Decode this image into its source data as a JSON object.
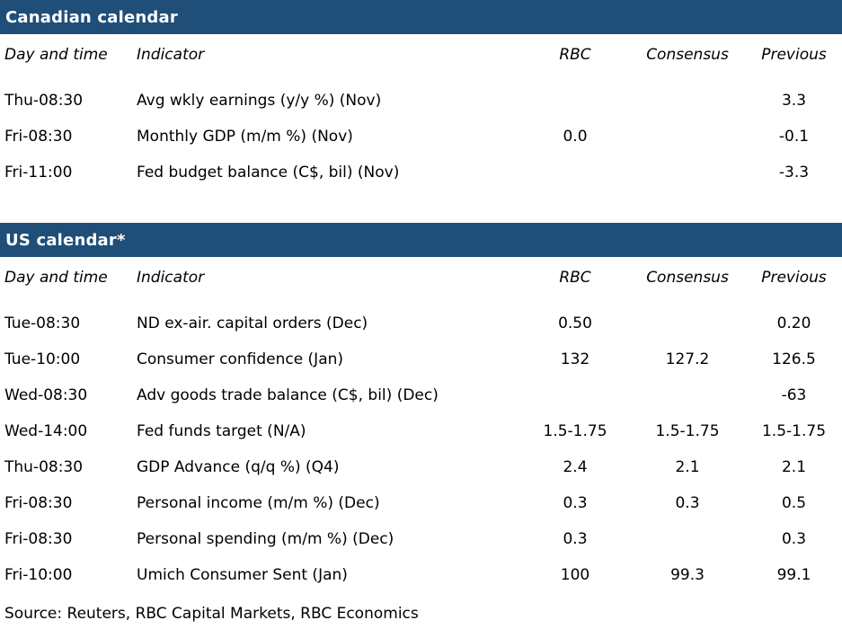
{
  "colors": {
    "section_header_bg": "#1F4E79",
    "section_header_text": "#FFFFFF",
    "body_text": "#000000"
  },
  "columns": {
    "day_time": "Day and time",
    "indicator": "Indicator",
    "rbc": "RBC",
    "consensus": "Consensus",
    "previous": "Previous"
  },
  "canadian": {
    "title": "Canadian calendar",
    "rows": [
      {
        "time": "Thu-08:30",
        "indicator": "Avg wkly earnings (y/y %) (Nov)",
        "rbc": "",
        "consensus": "",
        "previous": "3.3"
      },
      {
        "time": "Fri-08:30",
        "indicator": "Monthly GDP (m/m %) (Nov)",
        "rbc": "0.0",
        "consensus": "",
        "previous": "-0.1"
      },
      {
        "time": "Fri-11:00",
        "indicator": "Fed budget balance (C$, bil) (Nov)",
        "rbc": "",
        "consensus": "",
        "previous": "-3.3"
      }
    ]
  },
  "us": {
    "title": "US calendar*",
    "rows": [
      {
        "time": "Tue-08:30",
        "indicator": "ND ex-air. capital orders (Dec)",
        "rbc": "0.50",
        "consensus": "",
        "previous": "0.20"
      },
      {
        "time": "Tue-10:00",
        "indicator": "Consumer confidence (Jan)",
        "rbc": "132",
        "consensus": "127.2",
        "previous": "126.5"
      },
      {
        "time": "Wed-08:30",
        "indicator": "Adv goods trade balance (C$, bil) (Dec)",
        "rbc": "",
        "consensus": "",
        "previous": "-63"
      },
      {
        "time": "Wed-14:00",
        "indicator": "Fed funds target (N/A)",
        "rbc": "1.5-1.75",
        "consensus": "1.5-1.75",
        "previous": "1.5-1.75"
      },
      {
        "time": "Thu-08:30",
        "indicator": "GDP Advance (q/q %) (Q4)",
        "rbc": "2.4",
        "consensus": "2.1",
        "previous": "2.1"
      },
      {
        "time": "Fri-08:30",
        "indicator": "Personal income (m/m %) (Dec)",
        "rbc": "0.3",
        "consensus": "0.3",
        "previous": "0.5"
      },
      {
        "time": "Fri-08:30",
        "indicator": "Personal spending (m/m %) (Dec)",
        "rbc": "0.3",
        "consensus": "",
        "previous": "0.3"
      },
      {
        "time": "Fri-10:00",
        "indicator": "Umich Consumer Sent (Jan)",
        "rbc": "100",
        "consensus": "99.3",
        "previous": "99.1"
      }
    ]
  },
  "footer": {
    "source": "Source: Reuters, RBC Capital Markets, RBC Economics"
  }
}
